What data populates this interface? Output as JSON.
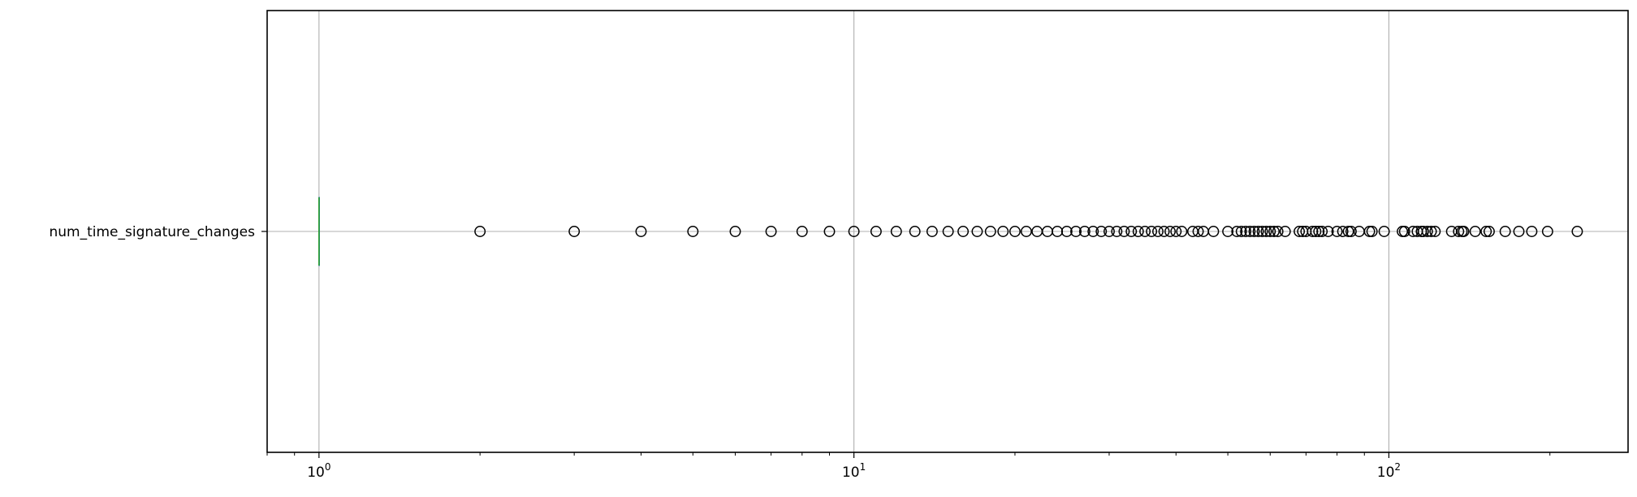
{
  "chart_data": {
    "type": "boxplot",
    "orientation": "horizontal",
    "xscale": "log",
    "xlim": [
      0.8,
      280
    ],
    "grid": true,
    "categories": [
      "num_time_signature_changes"
    ],
    "x_ticks": [
      {
        "value": 1,
        "base": "10",
        "exp": "0"
      },
      {
        "value": 10,
        "base": "10",
        "exp": "1"
      },
      {
        "value": 100,
        "base": "10",
        "exp": "2"
      }
    ],
    "box": {
      "min": 1,
      "q1": 1,
      "median": 1,
      "q3": 1,
      "max": 1
    },
    "outliers": [
      2,
      3,
      4,
      5,
      6,
      7,
      8,
      9,
      10,
      11,
      12,
      13,
      14,
      15,
      16,
      17,
      18,
      19,
      20,
      21,
      22,
      23,
      24,
      25,
      26,
      27,
      28,
      29,
      30,
      31,
      32,
      33,
      34,
      35,
      36,
      37,
      38,
      39,
      40,
      41,
      43,
      44,
      45,
      47,
      50,
      52,
      53,
      54,
      55,
      56,
      57,
      58,
      59,
      60,
      61,
      62,
      64,
      68,
      69,
      70,
      72,
      73,
      74,
      75,
      77,
      80,
      82,
      84,
      85,
      88,
      92,
      93,
      98,
      106,
      107,
      111,
      113,
      115,
      116,
      118,
      120,
      122,
      131,
      135,
      137,
      138,
      145,
      152,
      154,
      165,
      175,
      185,
      198,
      225
    ],
    "colors": {
      "median": "#2ca02c",
      "box": "#1f77b4",
      "grid": "#b0b0b0",
      "outlier": "#000000"
    }
  }
}
